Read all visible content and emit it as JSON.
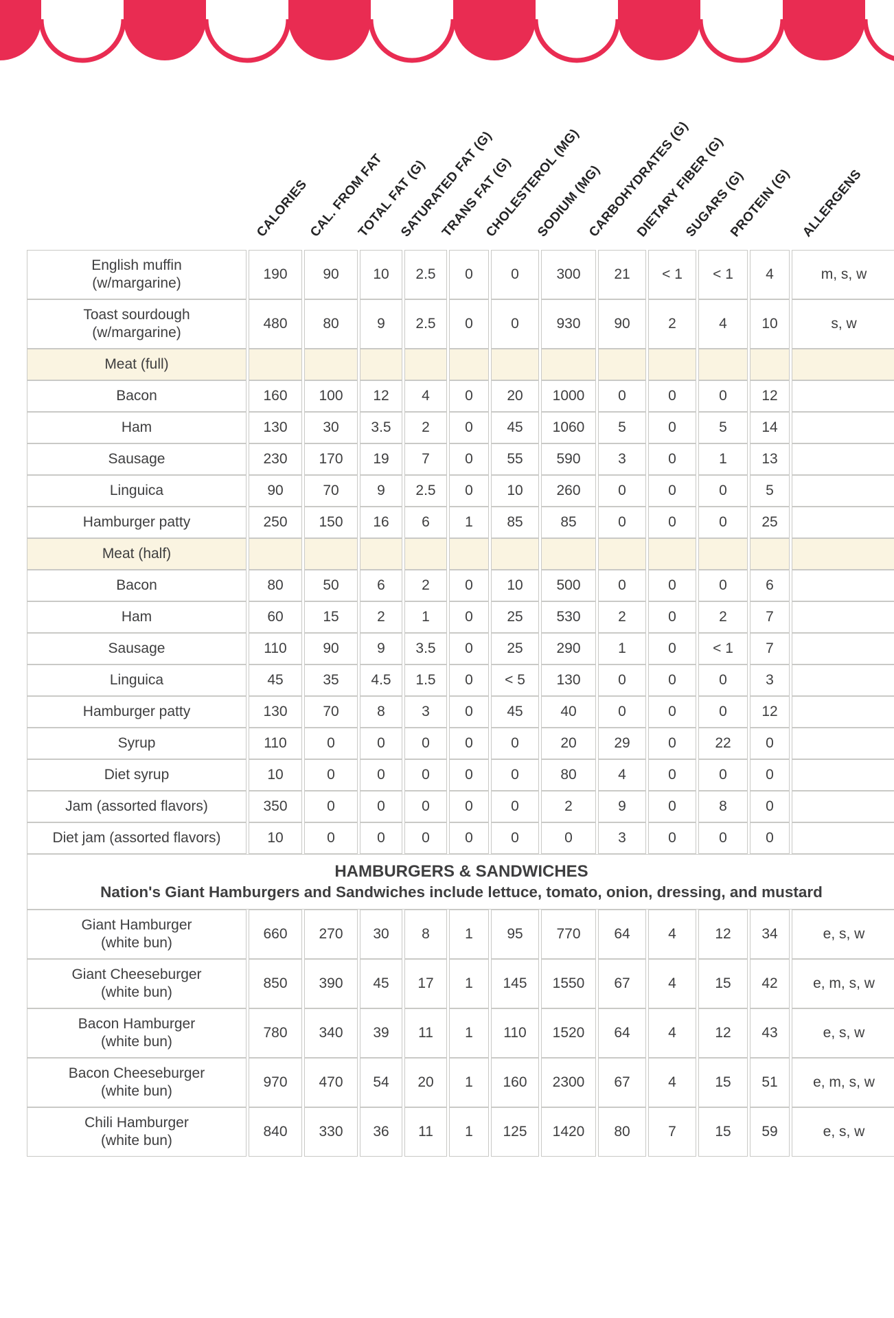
{
  "colors": {
    "accent": "#e92c52",
    "cream_column": "#f7e9c6",
    "section_row": "#faf4e1",
    "gridline": "#c9c9c6",
    "text": "#3e3e3f",
    "banner_text": "#ffffff"
  },
  "decoration": {
    "awning": "red-and-white scalloped awning"
  },
  "header_labels": [
    "CALORIES",
    "CAL. FROM FAT",
    "TOTAL FAT (G)",
    "SATURATED FAT (G)",
    "TRANS FAT (G)",
    "CHOLESTEROL (MG)",
    "SODIUM (MG)",
    "CARBOHYDRATES (G)",
    "DIETARY FIBER (G)",
    "SUGARS (G)",
    "PROTEIN (G)",
    "ALLERGENS"
  ],
  "banner": {
    "title": "HAMBURGERS & SANDWICHES",
    "subtitle": "Nation's Giant Hamburgers and Sandwiches include lettuce, tomato, onion, dressing, and mustard"
  },
  "rows": [
    {
      "type": "item",
      "name": "English muffin",
      "name2": "(w/margarine)",
      "values": [
        "190",
        "90",
        "10",
        "2.5",
        "0",
        "0",
        "300",
        "21",
        "< 1",
        "< 1",
        "4"
      ],
      "allergens": "m, s, w"
    },
    {
      "type": "item",
      "name": "Toast sourdough",
      "name2": "(w/margarine)",
      "values": [
        "480",
        "80",
        "9",
        "2.5",
        "0",
        "0",
        "930",
        "90",
        "2",
        "4",
        "10"
      ],
      "allergens": "s, w"
    },
    {
      "type": "section",
      "name": "Meat (full)"
    },
    {
      "type": "item",
      "name": "Bacon",
      "values": [
        "160",
        "100",
        "12",
        "4",
        "0",
        "20",
        "1000",
        "0",
        "0",
        "0",
        "12"
      ],
      "allergens": ""
    },
    {
      "type": "item",
      "name": "Ham",
      "values": [
        "130",
        "30",
        "3.5",
        "2",
        "0",
        "45",
        "1060",
        "5",
        "0",
        "5",
        "14"
      ],
      "allergens": ""
    },
    {
      "type": "item",
      "name": "Sausage",
      "values": [
        "230",
        "170",
        "19",
        "7",
        "0",
        "55",
        "590",
        "3",
        "0",
        "1",
        "13"
      ],
      "allergens": ""
    },
    {
      "type": "item",
      "name": "Linguica",
      "values": [
        "90",
        "70",
        "9",
        "2.5",
        "0",
        "10",
        "260",
        "0",
        "0",
        "0",
        "5"
      ],
      "allergens": ""
    },
    {
      "type": "item",
      "name": "Hamburger patty",
      "values": [
        "250",
        "150",
        "16",
        "6",
        "1",
        "85",
        "85",
        "0",
        "0",
        "0",
        "25"
      ],
      "allergens": ""
    },
    {
      "type": "section",
      "name": "Meat (half)"
    },
    {
      "type": "item",
      "name": "Bacon",
      "values": [
        "80",
        "50",
        "6",
        "2",
        "0",
        "10",
        "500",
        "0",
        "0",
        "0",
        "6"
      ],
      "allergens": ""
    },
    {
      "type": "item",
      "name": "Ham",
      "values": [
        "60",
        "15",
        "2",
        "1",
        "0",
        "25",
        "530",
        "2",
        "0",
        "2",
        "7"
      ],
      "allergens": ""
    },
    {
      "type": "item",
      "name": "Sausage",
      "values": [
        "110",
        "90",
        "9",
        "3.5",
        "0",
        "25",
        "290",
        "1",
        "0",
        "< 1",
        "7"
      ],
      "allergens": ""
    },
    {
      "type": "item",
      "name": "Linguica",
      "values": [
        "45",
        "35",
        "4.5",
        "1.5",
        "0",
        "< 5",
        "130",
        "0",
        "0",
        "0",
        "3"
      ],
      "allergens": ""
    },
    {
      "type": "item",
      "name": "Hamburger patty",
      "values": [
        "130",
        "70",
        "8",
        "3",
        "0",
        "45",
        "40",
        "0",
        "0",
        "0",
        "12"
      ],
      "allergens": ""
    },
    {
      "type": "item",
      "name": "Syrup",
      "values": [
        "110",
        "0",
        "0",
        "0",
        "0",
        "0",
        "20",
        "29",
        "0",
        "22",
        "0"
      ],
      "allergens": ""
    },
    {
      "type": "item",
      "name": "Diet syrup",
      "values": [
        "10",
        "0",
        "0",
        "0",
        "0",
        "0",
        "80",
        "4",
        "0",
        "0",
        "0"
      ],
      "allergens": ""
    },
    {
      "type": "item",
      "name": "Jam (assorted flavors)",
      "values": [
        "350",
        "0",
        "0",
        "0",
        "0",
        "0",
        "2",
        "9",
        "0",
        "8",
        "0"
      ],
      "allergens": ""
    },
    {
      "type": "item",
      "name": "Diet jam (assorted flavors)",
      "values": [
        "10",
        "0",
        "0",
        "0",
        "0",
        "0",
        "0",
        "3",
        "0",
        "0",
        "0"
      ],
      "allergens": ""
    },
    {
      "type": "banner"
    },
    {
      "type": "item",
      "name": "Giant Hamburger",
      "name2": "(white bun)",
      "values": [
        "660",
        "270",
        "30",
        "8",
        "1",
        "95",
        "770",
        "64",
        "4",
        "12",
        "34"
      ],
      "allergens": "e, s, w"
    },
    {
      "type": "item",
      "name": "Giant Cheeseburger",
      "name2": "(white bun)",
      "values": [
        "850",
        "390",
        "45",
        "17",
        "1",
        "145",
        "1550",
        "67",
        "4",
        "15",
        "42"
      ],
      "allergens": "e, m, s, w"
    },
    {
      "type": "item",
      "name": "Bacon Hamburger",
      "name2": "(white bun)",
      "values": [
        "780",
        "340",
        "39",
        "11",
        "1",
        "110",
        "1520",
        "64",
        "4",
        "12",
        "43"
      ],
      "allergens": "e, s, w"
    },
    {
      "type": "item",
      "name": "Bacon Cheeseburger",
      "name2": "(white bun)",
      "values": [
        "970",
        "470",
        "54",
        "20",
        "1",
        "160",
        "2300",
        "67",
        "4",
        "15",
        "51"
      ],
      "allergens": "e, m, s, w"
    },
    {
      "type": "item",
      "name": "Chili Hamburger",
      "name2": "(white bun)",
      "values": [
        "840",
        "330",
        "36",
        "11",
        "1",
        "125",
        "1420",
        "80",
        "7",
        "15",
        "59"
      ],
      "allergens": "e, s, w"
    }
  ]
}
